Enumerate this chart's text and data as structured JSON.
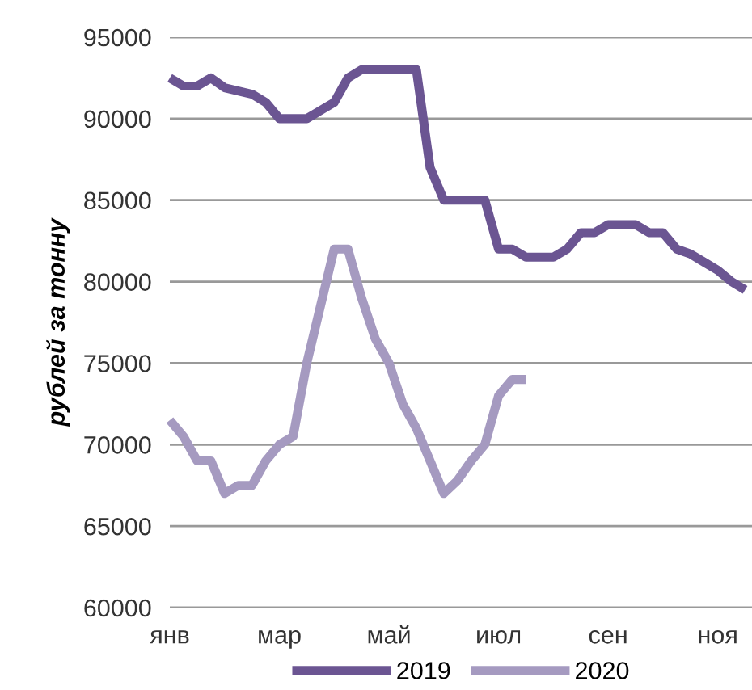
{
  "chart_data": {
    "type": "line",
    "ylabel": "рублей за тонну",
    "categories": [
      "янв",
      null,
      null,
      null,
      null,
      null,
      null,
      null,
      "мар",
      null,
      null,
      null,
      null,
      null,
      null,
      null,
      "май",
      null,
      null,
      null,
      null,
      null,
      null,
      null,
      "июл",
      null,
      null,
      null,
      null,
      null,
      null,
      null,
      "сен",
      null,
      null,
      null,
      null,
      null,
      null,
      null,
      "ноя",
      null,
      null
    ],
    "series": [
      {
        "name": "2019",
        "color": "#6b5592",
        "values": [
          92500,
          92000,
          92000,
          92500,
          91900,
          91700,
          91500,
          91000,
          90000,
          90000,
          90000,
          90500,
          91000,
          92500,
          93000,
          93000,
          93000,
          93000,
          93000,
          87000,
          85000,
          85000,
          85000,
          85000,
          82000,
          82000,
          81500,
          81500,
          81500,
          82000,
          83000,
          83000,
          83500,
          83500,
          83500,
          83000,
          83000,
          82000,
          81700,
          81200,
          80700,
          80000,
          79500
        ]
      },
      {
        "name": "2020",
        "color": "#a59ac0",
        "values": [
          71500,
          70500,
          69000,
          69000,
          67000,
          67500,
          67500,
          69000,
          70000,
          70500,
          75000,
          78500,
          82000,
          82000,
          79000,
          76500,
          75000,
          72500,
          71000,
          69000,
          67000,
          67800,
          69000,
          70000,
          73000,
          74000,
          74000,
          null,
          null,
          null,
          null,
          null,
          null,
          null,
          null,
          null,
          null,
          null,
          null,
          null,
          null,
          null,
          null
        ]
      }
    ],
    "ylim": [
      60000,
      95000
    ],
    "yticks": [
      60000,
      65000,
      70000,
      75000,
      80000,
      85000,
      90000,
      95000
    ],
    "grid": "y",
    "legend": "bottom",
    "marker": "none",
    "line_style": "solid"
  }
}
